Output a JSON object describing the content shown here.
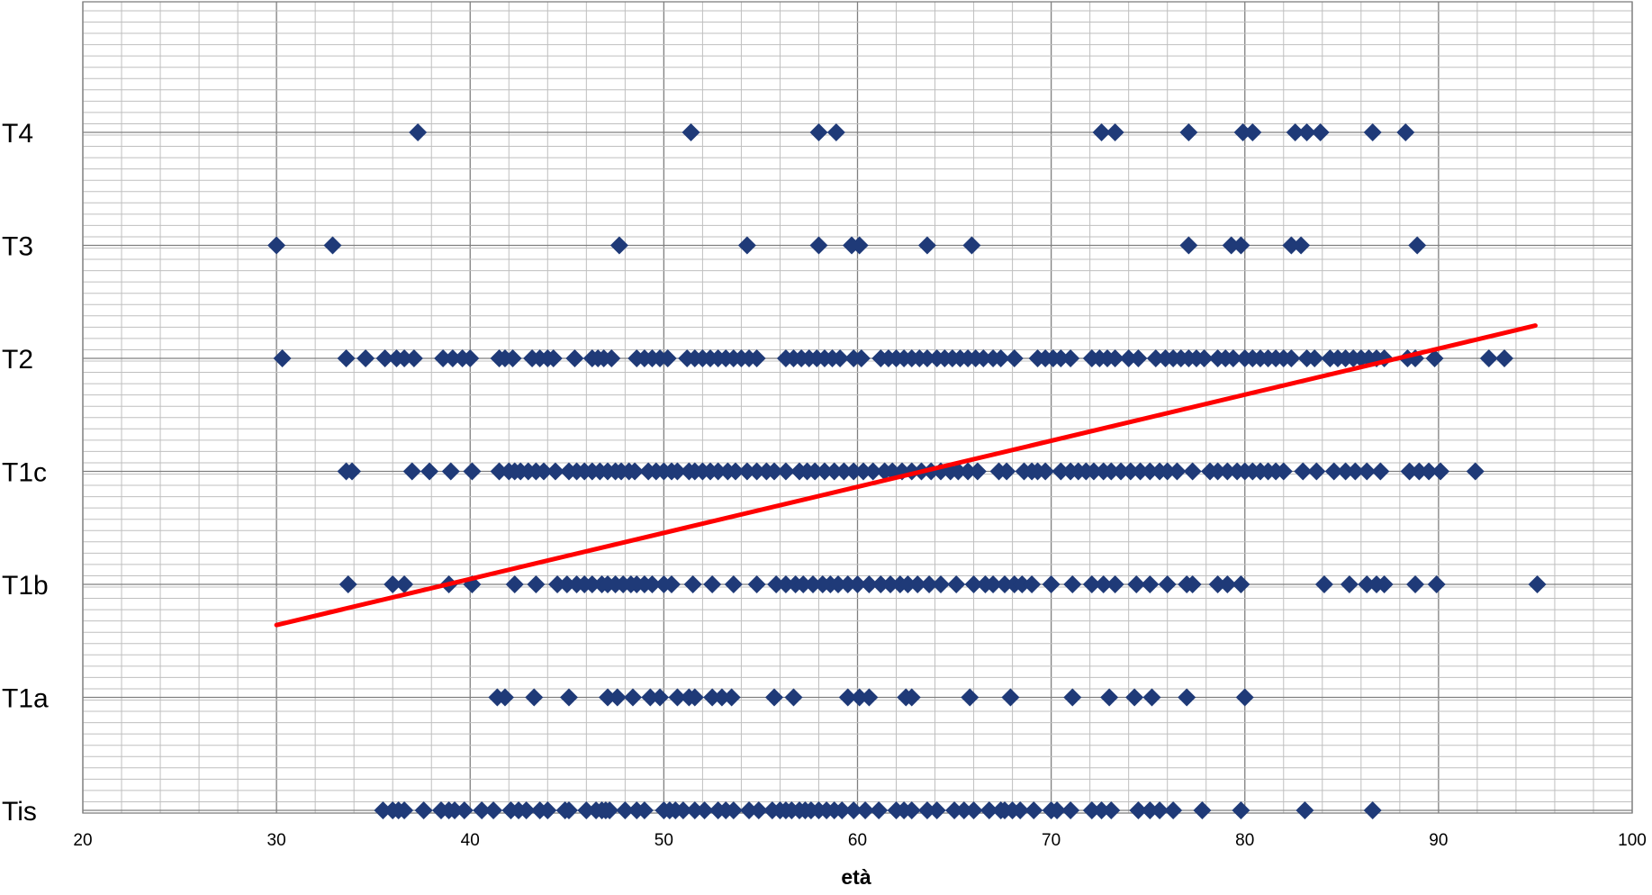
{
  "chart_data": {
    "type": "scatter",
    "title": "",
    "xlabel": "età",
    "ylabel": "",
    "xlim": [
      20,
      100
    ],
    "x_ticks": [
      20,
      30,
      40,
      50,
      60,
      70,
      80,
      90,
      100
    ],
    "categories": [
      "Tis",
      "T1a",
      "T1b",
      "T1c",
      "T2",
      "T3",
      "T4"
    ],
    "grid": true,
    "legend": "none",
    "colors": {
      "marker": "#1f3a78",
      "trend": "#ff0000",
      "grid": "#bfbfbf",
      "major_grid": "#7f7f7f"
    },
    "series": [
      {
        "category": "Tis",
        "x": [
          35.5,
          36.0,
          36.3,
          36.6,
          37.6,
          38.5,
          38.9,
          39.2,
          39.7,
          40.6,
          41.2,
          42.1,
          42.5,
          42.9,
          43.6,
          44.0,
          44.9,
          45.1,
          46.0,
          46.5,
          46.8,
          47.0,
          47.2,
          48.0,
          48.6,
          49.0,
          50.0,
          50.3,
          50.6,
          51.0,
          51.6,
          52.1,
          52.8,
          53.2,
          53.6,
          54.4,
          54.9,
          55.6,
          56.0,
          56.3,
          56.6,
          57.0,
          57.3,
          57.6,
          58.0,
          58.4,
          58.8,
          59.2,
          59.8,
          60.4,
          61.1,
          62.0,
          62.4,
          62.8,
          63.6,
          64.1,
          65.0,
          65.5,
          66.0,
          66.8,
          67.4,
          67.6,
          68.0,
          68.4,
          69.1,
          70.0,
          70.3,
          71.0,
          72.1,
          72.6,
          73.1,
          74.5,
          75.1,
          75.6,
          76.3,
          77.8,
          79.8,
          83.1,
          86.6
        ]
      },
      {
        "category": "T1a",
        "x": [
          41.4,
          41.8,
          43.3,
          45.1,
          47.1,
          47.6,
          48.4,
          49.3,
          49.8,
          50.7,
          51.3,
          51.6,
          52.5,
          53.0,
          53.5,
          55.7,
          56.7,
          59.5,
          60.1,
          60.6,
          62.5,
          62.8,
          65.8,
          67.9,
          71.1,
          73.0,
          74.3,
          75.2,
          77.0,
          80.0
        ]
      },
      {
        "category": "T1b",
        "x": [
          33.7,
          36.0,
          36.6,
          38.9,
          40.1,
          42.3,
          43.4,
          44.5,
          45.0,
          45.5,
          45.9,
          46.3,
          46.8,
          47.1,
          47.5,
          47.9,
          48.3,
          48.6,
          49.0,
          49.4,
          50.0,
          50.4,
          51.5,
          52.5,
          53.6,
          54.8,
          55.8,
          56.3,
          56.8,
          57.2,
          57.7,
          58.2,
          58.6,
          59.0,
          59.5,
          60.0,
          60.6,
          61.2,
          61.7,
          62.2,
          62.6,
          63.1,
          63.7,
          64.3,
          65.1,
          66.0,
          66.6,
          67.0,
          67.6,
          68.1,
          68.5,
          69.0,
          70.0,
          71.1,
          72.1,
          72.7,
          73.3,
          74.4,
          75.1,
          76.0,
          77.0,
          77.3,
          78.6,
          79.1,
          79.8,
          84.1,
          85.4,
          86.3,
          86.8,
          87.2,
          88.8,
          89.9,
          95.1
        ]
      },
      {
        "category": "T1c",
        "x": [
          33.6,
          33.9,
          37.0,
          37.9,
          39.0,
          40.1,
          41.5,
          42.0,
          42.3,
          42.6,
          43.0,
          43.4,
          43.8,
          44.4,
          45.1,
          45.5,
          45.9,
          46.3,
          46.7,
          47.1,
          47.5,
          47.8,
          48.2,
          48.5,
          49.2,
          49.6,
          50.0,
          50.4,
          50.7,
          51.3,
          51.6,
          52.0,
          52.4,
          52.8,
          53.3,
          53.7,
          54.3,
          54.8,
          55.3,
          55.7,
          56.3,
          57.0,
          57.4,
          57.8,
          58.3,
          58.8,
          59.3,
          59.8,
          60.3,
          60.8,
          61.4,
          61.8,
          62.3,
          62.8,
          63.3,
          63.8,
          64.3,
          64.8,
          65.2,
          65.7,
          66.2,
          67.3,
          67.7,
          68.6,
          69.0,
          69.3,
          69.7,
          70.5,
          71.0,
          71.4,
          71.8,
          72.2,
          72.7,
          73.1,
          73.6,
          74.1,
          74.6,
          75.1,
          75.6,
          76.0,
          76.5,
          77.3,
          78.2,
          78.6,
          79.1,
          79.6,
          80.0,
          80.4,
          80.8,
          81.2,
          81.6,
          82.0,
          83.0,
          83.7,
          84.6,
          85.2,
          85.7,
          86.3,
          87.0,
          88.5,
          89.0,
          89.5,
          90.1,
          91.9
        ]
      },
      {
        "category": "T2",
        "x": [
          30.3,
          33.6,
          34.6,
          35.6,
          36.2,
          36.6,
          37.1,
          38.6,
          39.1,
          39.6,
          40.0,
          41.5,
          41.8,
          42.2,
          43.2,
          43.6,
          44.0,
          44.3,
          45.4,
          46.3,
          46.6,
          46.9,
          47.3,
          48.6,
          49.0,
          49.4,
          49.8,
          50.2,
          51.2,
          51.6,
          52.0,
          52.4,
          52.8,
          53.2,
          53.6,
          54.0,
          54.4,
          54.8,
          56.3,
          56.7,
          57.1,
          57.5,
          57.9,
          58.3,
          58.7,
          59.1,
          59.8,
          60.2,
          61.2,
          61.6,
          62.0,
          62.4,
          62.8,
          63.2,
          63.6,
          64.1,
          64.5,
          64.9,
          65.3,
          65.7,
          66.1,
          66.5,
          67.0,
          67.4,
          68.1,
          69.3,
          69.7,
          70.1,
          70.5,
          71.0,
          72.1,
          72.5,
          72.9,
          73.3,
          74.0,
          74.5,
          75.4,
          75.9,
          76.3,
          76.7,
          77.1,
          77.5,
          77.9,
          78.6,
          79.0,
          79.4,
          80.0,
          80.4,
          80.8,
          81.2,
          81.6,
          82.0,
          82.4,
          83.2,
          83.6,
          84.4,
          84.8,
          85.2,
          85.6,
          86.0,
          86.4,
          86.8,
          87.2,
          88.4,
          88.8,
          89.8,
          92.6,
          93.4
        ]
      },
      {
        "category": "T3",
        "x": [
          30.0,
          32.9,
          47.7,
          54.3,
          58.0,
          59.7,
          60.1,
          63.6,
          65.9,
          77.1,
          79.3,
          79.8,
          82.4,
          82.9,
          88.9
        ]
      },
      {
        "category": "T4",
        "x": [
          37.3,
          51.4,
          58.0,
          58.9,
          72.6,
          73.3,
          77.1,
          79.9,
          80.4,
          82.6,
          83.2,
          83.9,
          86.6,
          88.3
        ]
      }
    ],
    "trendline": {
      "x": [
        30,
        95
      ],
      "y_category_units": [
        1.64,
        4.29
      ]
    }
  }
}
